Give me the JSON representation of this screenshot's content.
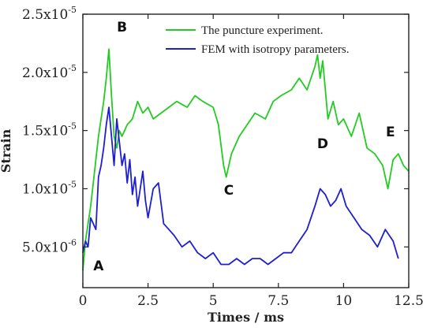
{
  "chart_data": {
    "type": "line",
    "title": "",
    "xlabel": "Times / ms",
    "ylabel": "Strain",
    "xlim": [
      0,
      12.5
    ],
    "ylim": [
      1.5e-06,
      2.5e-05
    ],
    "x_ticks": [
      {
        "value": 0,
        "label": "0"
      },
      {
        "value": 2.5,
        "label": "2.5"
      },
      {
        "value": 5,
        "label": "5"
      },
      {
        "value": 7.5,
        "label": "7.5"
      },
      {
        "value": 10,
        "label": "10"
      },
      {
        "value": 12.5,
        "label": "12.5"
      }
    ],
    "y_ticks": [
      {
        "value": 5e-06,
        "mantissa": "5.0x10",
        "exp": "-6"
      },
      {
        "value": 1e-05,
        "mantissa": "1.0x10",
        "exp": "-5"
      },
      {
        "value": 1.5e-05,
        "mantissa": "1.5x10",
        "exp": "-5"
      },
      {
        "value": 2e-05,
        "mantissa": "2.0x10",
        "exp": "-5"
      },
      {
        "value": 2.5e-05,
        "mantissa": "2.5x10",
        "exp": "-5"
      }
    ],
    "legend_position": "top-right",
    "series": [
      {
        "name": "The puncture experiment.",
        "color": "#22cc22",
        "x": [
          0,
          0.1,
          0.2,
          0.3,
          0.4,
          0.5,
          0.6,
          0.7,
          0.8,
          0.9,
          1.0,
          1.1,
          1.2,
          1.3,
          1.4,
          1.5,
          1.7,
          1.9,
          2.1,
          2.3,
          2.5,
          2.7,
          3.0,
          3.3,
          3.6,
          4.0,
          4.3,
          4.6,
          5.0,
          5.2,
          5.4,
          5.5,
          5.7,
          6.0,
          6.3,
          6.6,
          7.0,
          7.3,
          7.6,
          8.0,
          8.3,
          8.6,
          8.9,
          9.0,
          9.1,
          9.2,
          9.4,
          9.6,
          9.8,
          10.0,
          10.3,
          10.6,
          10.9,
          11.2,
          11.5,
          11.7,
          11.9,
          12.1,
          12.3,
          12.5
        ],
        "y": [
          3e-06,
          5.5e-06,
          7e-06,
          8.5e-06,
          1.05e-05,
          1.25e-05,
          1.45e-05,
          1.6e-05,
          1.75e-05,
          1.95e-05,
          2.2e-05,
          1.8e-05,
          1.45e-05,
          1.35e-05,
          1.5e-05,
          1.45e-05,
          1.55e-05,
          1.6e-05,
          1.75e-05,
          1.65e-05,
          1.7e-05,
          1.6e-05,
          1.65e-05,
          1.7e-05,
          1.75e-05,
          1.7e-05,
          1.8e-05,
          1.75e-05,
          1.7e-05,
          1.55e-05,
          1.2e-05,
          1.1e-05,
          1.3e-05,
          1.45e-05,
          1.55e-05,
          1.65e-05,
          1.6e-05,
          1.75e-05,
          1.8e-05,
          1.85e-05,
          1.95e-05,
          1.85e-05,
          2.05e-05,
          2.15e-05,
          1.95e-05,
          2.1e-05,
          1.6e-05,
          1.75e-05,
          1.55e-05,
          1.6e-05,
          1.45e-05,
          1.65e-05,
          1.35e-05,
          1.3e-05,
          1.2e-05,
          1e-05,
          1.25e-05,
          1.3e-05,
          1.2e-05,
          1.15e-05
        ]
      },
      {
        "name": "FEM with isotropy parameters.",
        "color": "#1e1ed2",
        "x": [
          0,
          0.1,
          0.2,
          0.3,
          0.4,
          0.5,
          0.6,
          0.7,
          0.8,
          0.9,
          1.0,
          1.1,
          1.2,
          1.3,
          1.4,
          1.5,
          1.6,
          1.7,
          1.8,
          1.9,
          2.0,
          2.1,
          2.2,
          2.3,
          2.4,
          2.5,
          2.7,
          2.9,
          3.1,
          3.3,
          3.5,
          3.8,
          4.1,
          4.4,
          4.7,
          5.0,
          5.3,
          5.6,
          5.9,
          6.2,
          6.5,
          6.8,
          7.1,
          7.4,
          7.7,
          8.0,
          8.3,
          8.6,
          8.9,
          9.1,
          9.3,
          9.5,
          9.7,
          9.9,
          10.1,
          10.4,
          10.7,
          11.0,
          11.3,
          11.6,
          11.9,
          12.1
        ],
        "y": [
          4.5e-06,
          5.5e-06,
          5e-06,
          7.5e-06,
          7e-06,
          6.5e-06,
          1.1e-05,
          1.2e-05,
          1.35e-05,
          1.55e-05,
          1.7e-05,
          1.45e-05,
          1.2e-05,
          1.6e-05,
          1.4e-05,
          1.2e-05,
          1.3e-05,
          1.05e-05,
          1.25e-05,
          9.5e-06,
          1.1e-05,
          8.5e-06,
          1e-05,
          1.15e-05,
          9e-06,
          7.5e-06,
          1e-05,
          1.05e-05,
          7e-06,
          6.5e-06,
          6e-06,
          5e-06,
          5.5e-06,
          4.5e-06,
          4e-06,
          4.5e-06,
          3.5e-06,
          3.5e-06,
          4e-06,
          3.5e-06,
          4e-06,
          4e-06,
          3.5e-06,
          4e-06,
          4.5e-06,
          4.5e-06,
          5.5e-06,
          6.5e-06,
          8.5e-06,
          1e-05,
          9.5e-06,
          8.5e-06,
          9e-06,
          1e-05,
          8.5e-06,
          7.5e-06,
          6.5e-06,
          6e-06,
          5e-06,
          6.5e-06,
          5.5e-06,
          4e-06
        ]
      }
    ],
    "annotations": [
      {
        "label": "A",
        "x": 0.6,
        "y": 3e-06
      },
      {
        "label": "B",
        "x": 1.5,
        "y": 2.35e-05
      },
      {
        "label": "C",
        "x": 5.6,
        "y": 9.5e-06
      },
      {
        "label": "D",
        "x": 9.2,
        "y": 1.35e-05
      },
      {
        "label": "E",
        "x": 11.8,
        "y": 1.45e-05
      }
    ]
  }
}
